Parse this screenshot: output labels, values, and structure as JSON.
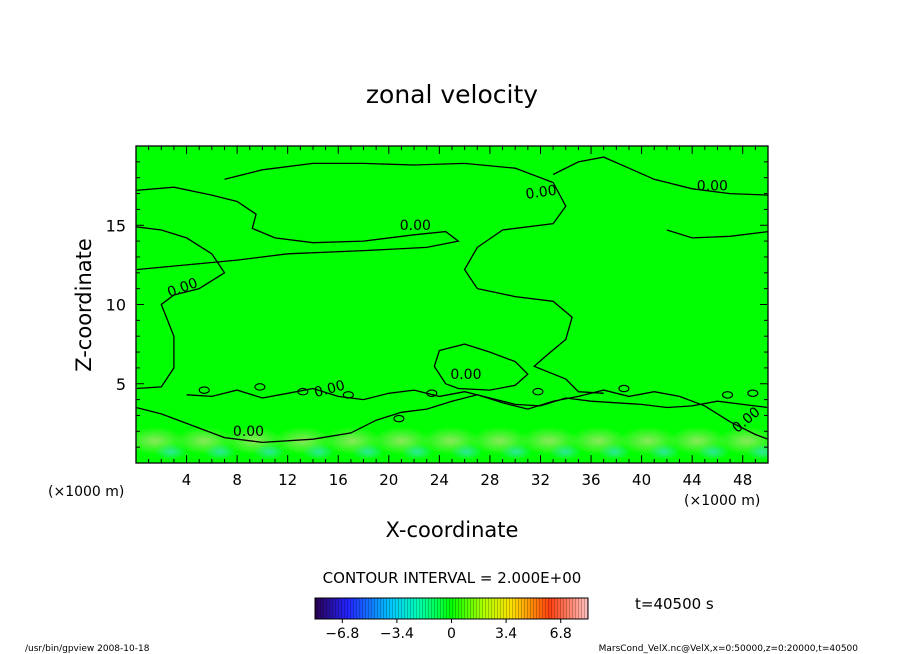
{
  "chart_data": {
    "type": "heatmap",
    "title": "zonal velocity",
    "xlabel": "X-coordinate",
    "ylabel": "Z-coordinate",
    "x_unit_left": "(×1000 m)",
    "x_unit_right": "(×1000 m)",
    "xlim": [
      0,
      50
    ],
    "ylim": [
      0,
      20
    ],
    "x_ticks": [
      4,
      8,
      12,
      16,
      20,
      24,
      28,
      32,
      36,
      40,
      44,
      48
    ],
    "y_ticks": [
      5,
      10,
      15
    ],
    "contour_label": "0.00",
    "contour_interval": "CONTOUR INTERVAL = 2.000E+00",
    "time_label": "t=40500 s",
    "colorbar": {
      "range": [
        -8.5,
        8.5
      ],
      "ticks": [
        "−6.8",
        "−3.4",
        "0",
        "3.4",
        "6.8"
      ],
      "tick_values": [
        -6.8,
        -3.4,
        0,
        3.4,
        6.8
      ]
    },
    "footer_left": "/usr/bin/gpview   2008-10-18",
    "footer_right": "MarsCond_VelX.nc@VelX,x=0:50000,z=0:20000,t=40500",
    "colors": {
      "background_field": "#00ff00",
      "contour": "#000000"
    },
    "contour_lines": [
      {
        "name": "upper",
        "points": [
          [
            0,
            17.2
          ],
          [
            3,
            17.4
          ],
          [
            6,
            16.9
          ],
          [
            8,
            16.5
          ],
          [
            9.5,
            15.7
          ],
          [
            9.2,
            14.8
          ],
          [
            11,
            14.2
          ],
          [
            14,
            13.9
          ],
          [
            18,
            14.0
          ],
          [
            22,
            14.4
          ],
          [
            24.5,
            14.6
          ],
          [
            25.5,
            14.0
          ],
          [
            23,
            13.6
          ],
          [
            18,
            13.4
          ],
          [
            12,
            13.2
          ],
          [
            8,
            12.8
          ],
          [
            4,
            12.5
          ],
          [
            0,
            12.2
          ]
        ]
      },
      {
        "name": "top-left",
        "points": [
          [
            0,
            14.9
          ],
          [
            2,
            14.7
          ],
          [
            4,
            14.2
          ],
          [
            6,
            13.2
          ],
          [
            7,
            12.0
          ],
          [
            5,
            11.0
          ],
          [
            3,
            10.6
          ],
          [
            2,
            10.0
          ],
          [
            3,
            8.0
          ],
          [
            3,
            6.0
          ],
          [
            2,
            4.8
          ],
          [
            0,
            4.7
          ]
        ]
      },
      {
        "name": "top",
        "points": [
          [
            7,
            17.9
          ],
          [
            10,
            18.5
          ],
          [
            14,
            18.9
          ],
          [
            18,
            18.9
          ],
          [
            22,
            18.8
          ],
          [
            26,
            18.9
          ],
          [
            30,
            18.6
          ],
          [
            33,
            17.7
          ],
          [
            34,
            16.2
          ],
          [
            33,
            15.1
          ],
          [
            29,
            14.7
          ],
          [
            27,
            13.6
          ],
          [
            26,
            12.2
          ],
          [
            27,
            11.0
          ],
          [
            30,
            10.5
          ],
          [
            33,
            10.2
          ],
          [
            34.5,
            9.2
          ],
          [
            34,
            7.8
          ],
          [
            32.5,
            6.8
          ],
          [
            31.5,
            6.1
          ],
          [
            34,
            5.3
          ],
          [
            35,
            4.5
          ],
          [
            37,
            4.4
          ]
        ]
      },
      {
        "name": "top-right",
        "points": [
          [
            33,
            18.2
          ],
          [
            35,
            19.0
          ],
          [
            37,
            19.3
          ],
          [
            39,
            18.6
          ],
          [
            41,
            17.9
          ],
          [
            44,
            17.3
          ],
          [
            47,
            17.0
          ],
          [
            50,
            16.9
          ]
        ]
      },
      {
        "name": "mid-right",
        "points": [
          [
            42,
            14.7
          ],
          [
            44,
            14.2
          ],
          [
            47,
            14.3
          ],
          [
            50,
            14.6
          ]
        ]
      },
      {
        "name": "blob",
        "points": [
          [
            24.5,
            5.0
          ],
          [
            23.6,
            6.1
          ],
          [
            24,
            7.1
          ],
          [
            26,
            7.5
          ],
          [
            28,
            7.0
          ],
          [
            30,
            6.4
          ],
          [
            31,
            5.6
          ],
          [
            30,
            4.9
          ],
          [
            28,
            4.6
          ],
          [
            25.5,
            4.7
          ],
          [
            24.5,
            5.0
          ]
        ]
      },
      {
        "name": "lower",
        "points": [
          [
            0,
            3.5
          ],
          [
            2,
            3.1
          ],
          [
            4,
            2.5
          ],
          [
            7,
            1.6
          ],
          [
            10,
            1.3
          ],
          [
            14,
            1.5
          ],
          [
            17,
            1.9
          ],
          [
            19,
            2.7
          ],
          [
            21,
            3.2
          ],
          [
            23,
            3.4
          ],
          [
            25,
            3.9
          ],
          [
            27,
            4.3
          ],
          [
            29,
            3.8
          ],
          [
            31,
            3.4
          ],
          [
            33,
            3.9
          ],
          [
            35,
            4.2
          ],
          [
            37,
            4.6
          ],
          [
            39,
            4.2
          ],
          [
            41,
            4.5
          ],
          [
            43,
            4.2
          ],
          [
            45,
            3.6
          ],
          [
            47,
            2.6
          ],
          [
            49,
            1.8
          ],
          [
            50,
            1.5
          ]
        ]
      },
      {
        "name": "ripple-low",
        "points": [
          [
            4,
            4.3
          ],
          [
            6,
            4.2
          ],
          [
            8,
            4.6
          ],
          [
            10,
            4.1
          ],
          [
            12,
            4.4
          ],
          [
            14,
            4.7
          ],
          [
            16,
            4.2
          ],
          [
            18,
            4.0
          ],
          [
            20,
            4.4
          ],
          [
            22,
            4.6
          ],
          [
            24,
            4.2
          ],
          [
            26,
            4.5
          ],
          [
            28,
            4.1
          ],
          [
            30,
            3.7
          ],
          [
            32,
            3.6
          ],
          [
            34,
            4.1
          ],
          [
            36,
            3.9
          ],
          [
            38,
            3.8
          ],
          [
            40,
            3.7
          ],
          [
            42,
            3.5
          ],
          [
            44,
            3.6
          ],
          [
            46,
            3.9
          ],
          [
            48,
            3.7
          ],
          [
            50,
            3.5
          ]
        ]
      }
    ]
  }
}
